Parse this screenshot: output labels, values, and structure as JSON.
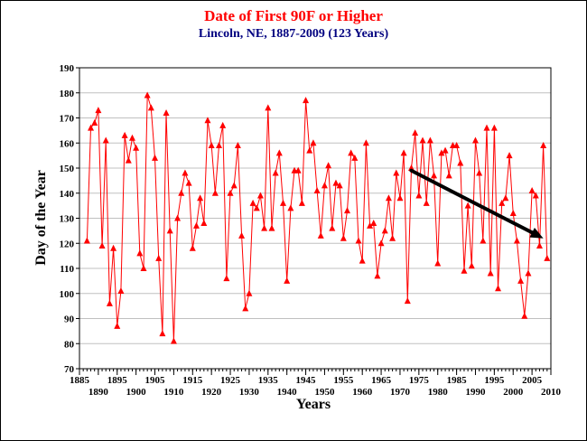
{
  "chart_data": {
    "type": "line",
    "title": "Date of First 90F or Higher",
    "subtitle": "Lincoln, NE, 1887-2009 (123 Years)",
    "xlabel": "Years",
    "ylabel": "Day of the Year",
    "xlim": [
      1885,
      2010
    ],
    "ylim": [
      70,
      190
    ],
    "xticks_major": [
      1885,
      1890,
      1895,
      1900,
      1905,
      1910,
      1915,
      1920,
      1925,
      1930,
      1935,
      1940,
      1945,
      1950,
      1955,
      1960,
      1965,
      1970,
      1975,
      1980,
      1985,
      1990,
      1995,
      2000,
      2005,
      2010
    ],
    "yticks": [
      70,
      80,
      90,
      100,
      110,
      120,
      130,
      140,
      150,
      160,
      170,
      180,
      190
    ],
    "grid": true,
    "colors": {
      "series": "#ff0000",
      "title": "#ff0000",
      "subtitle": "#000080",
      "trend_arrow": "#000000"
    },
    "series": [
      {
        "x": [
          1887,
          1888,
          1889,
          1890,
          1891,
          1892,
          1893,
          1894,
          1895,
          1896,
          1897,
          1898,
          1899,
          1900,
          1901,
          1902,
          1903,
          1904,
          1905,
          1906,
          1907,
          1908,
          1909,
          1910,
          1911,
          1912,
          1913,
          1914,
          1915,
          1916,
          1917,
          1918,
          1919,
          1920,
          1921,
          1922,
          1923,
          1924,
          1925,
          1926,
          1927,
          1928,
          1929,
          1930,
          1931,
          1932,
          1933,
          1934,
          1935,
          1936,
          1937,
          1938,
          1939,
          1940,
          1941,
          1942,
          1943,
          1944,
          1945,
          1946,
          1947,
          1948,
          1949,
          1950,
          1951,
          1952,
          1953,
          1954,
          1955,
          1956,
          1957,
          1958,
          1959,
          1960,
          1961,
          1962,
          1963,
          1964,
          1965,
          1966,
          1967,
          1968,
          1969,
          1970,
          1971,
          1972,
          1973,
          1974,
          1975,
          1976,
          1977,
          1978,
          1979,
          1980,
          1981,
          1982,
          1983,
          1984,
          1985,
          1986,
          1987,
          1988,
          1989,
          1990,
          1991,
          1992,
          1993,
          1994,
          1995,
          1996,
          1997,
          1998,
          1999,
          2000,
          2001,
          2002,
          2003,
          2004,
          2005,
          2006,
          2007,
          2008,
          2009
        ],
        "values": [
          121,
          166,
          168,
          173,
          119,
          161,
          96,
          118,
          87,
          101,
          163,
          153,
          162,
          158,
          116,
          110,
          179,
          174,
          154,
          114,
          84,
          172,
          125,
          81,
          130,
          140,
          148,
          144,
          118,
          127,
          138,
          128,
          169,
          159,
          140,
          159,
          167,
          106,
          140,
          143,
          159,
          123,
          94,
          100,
          136,
          134,
          139,
          126,
          174,
          126,
          148,
          156,
          136,
          105,
          134,
          149,
          149,
          136,
          177,
          157,
          160,
          141,
          123,
          143,
          151,
          126,
          144,
          143,
          122,
          133,
          156,
          154,
          121,
          113,
          160,
          127,
          128,
          107,
          120,
          125,
          138,
          122,
          148,
          138,
          156,
          97,
          150,
          164,
          139,
          161,
          136,
          161,
          147,
          112,
          156,
          157,
          147,
          159,
          159,
          152,
          109,
          135,
          111,
          161,
          148,
          121,
          166,
          108,
          166,
          102,
          136,
          138,
          155,
          132,
          121,
          105,
          91,
          108,
          141,
          139,
          119,
          159,
          114
        ]
      }
    ],
    "annotations": [
      {
        "type": "trend-arrow",
        "from": [
          1973,
          149
        ],
        "to": [
          2008,
          122
        ]
      }
    ]
  }
}
